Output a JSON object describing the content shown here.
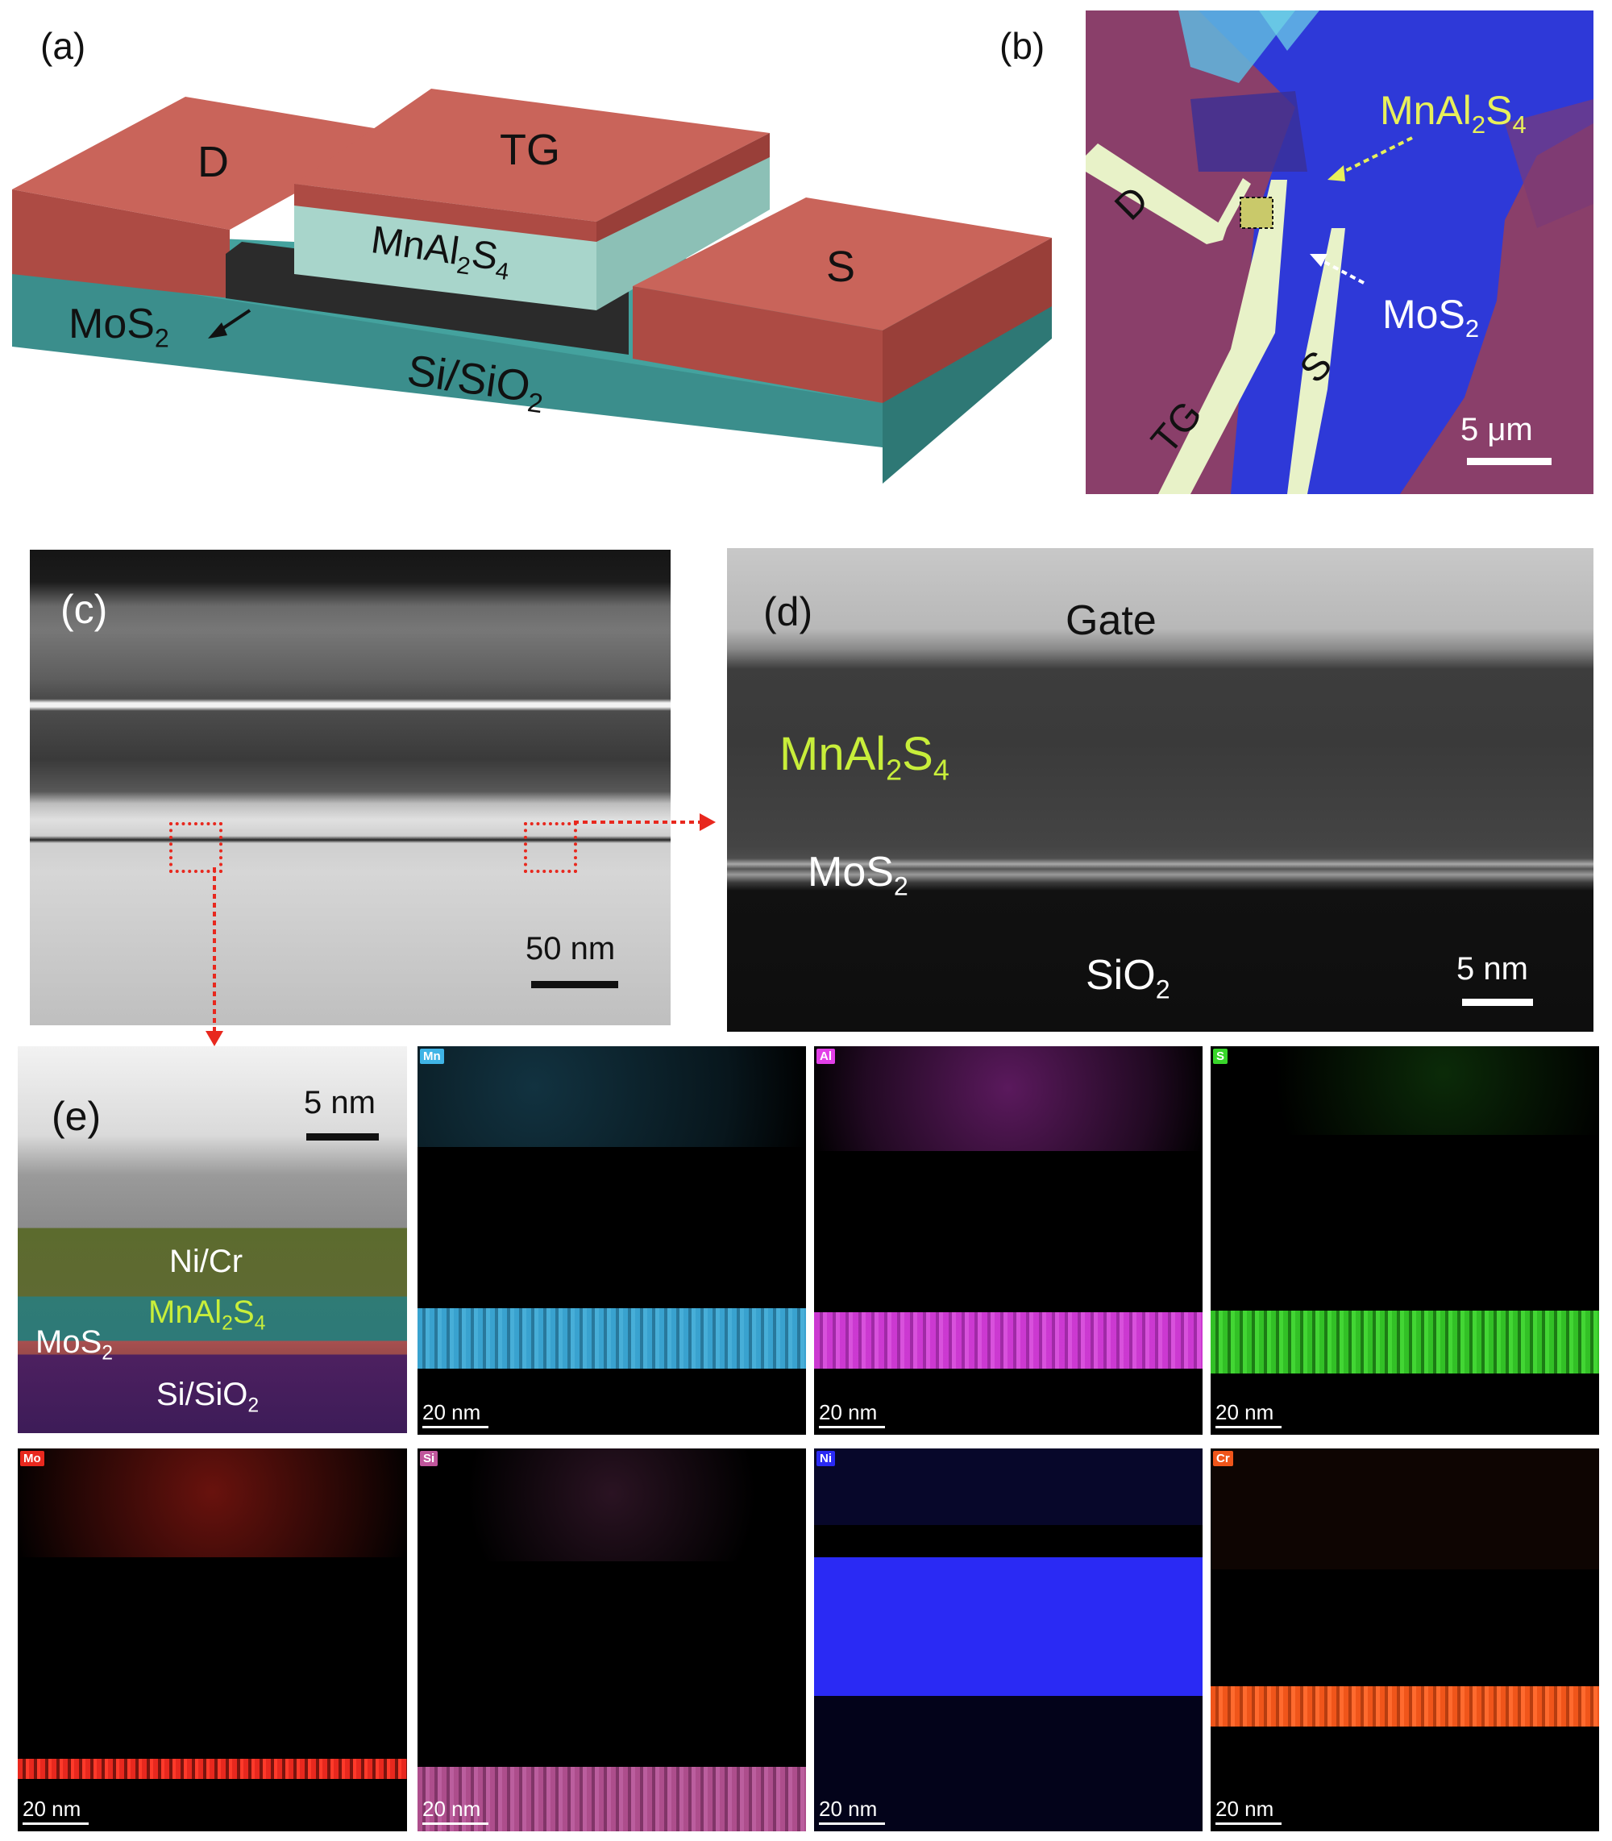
{
  "panels": {
    "a": {
      "label": "(a)",
      "drain": "D",
      "top_gate": "TG",
      "source": "S",
      "dielectric": "MnAl",
      "dielectric_sub1": "2",
      "dielectric_mid": "S",
      "dielectric_sub2": "4",
      "channel": "MoS",
      "channel_sub": "2",
      "substrate": "Si/SiO",
      "substrate_sub": "2"
    },
    "b": {
      "label": "(b)",
      "drain": "D",
      "top_gate": "TG",
      "source": "S",
      "dielectric": "MnAl",
      "dielectric_sub1": "2",
      "dielectric_mid": "S",
      "dielectric_sub2": "4",
      "channel": "MoS",
      "channel_sub": "2",
      "scale": "5 μm"
    },
    "c": {
      "label": "(c)",
      "scale": "50 nm"
    },
    "d": {
      "label": "(d)",
      "gate": "Gate",
      "dielectric": "MnAl",
      "dielectric_sub1": "2",
      "dielectric_mid": "S",
      "dielectric_sub2": "4",
      "channel": "MoS",
      "channel_sub": "2",
      "substrate": "SiO",
      "substrate_sub": "2",
      "scale": "5 nm"
    },
    "e": {
      "label": "(e)",
      "scale": "5 nm",
      "metal": "Ni/Cr",
      "dielectric": "MnAl",
      "dielectric_sub1": "2",
      "dielectric_mid": "S",
      "dielectric_sub2": "4",
      "channel": "MoS",
      "channel_sub": "2",
      "substrate": "Si/SiO",
      "substrate_sub": "2"
    }
  },
  "eds_maps": [
    {
      "element": "Mn",
      "scale": "20 nm",
      "color": "#3fb4e6"
    },
    {
      "element": "Al",
      "scale": "20 nm",
      "color": "#e23fe8"
    },
    {
      "element": "S",
      "scale": "20 nm",
      "color": "#38d62a"
    },
    {
      "element": "Mo",
      "scale": "20 nm",
      "color": "#e8281e"
    },
    {
      "element": "Si",
      "scale": "20 nm",
      "color": "#c0569c"
    },
    {
      "element": "Ni",
      "scale": "20 nm",
      "color": "#2a2af4"
    },
    {
      "element": "Cr",
      "scale": "20 nm",
      "color": "#f0551a"
    }
  ],
  "colors": {
    "electrode": "#c96057",
    "dielectric": "#a7d3c9",
    "substrate": "#3f8f8c",
    "optical_bg": "#8a3f6a",
    "flake_blue": "#2d3ad6",
    "annotation_yellow": "#e8f05a",
    "annotation_red": "#e8281e"
  }
}
